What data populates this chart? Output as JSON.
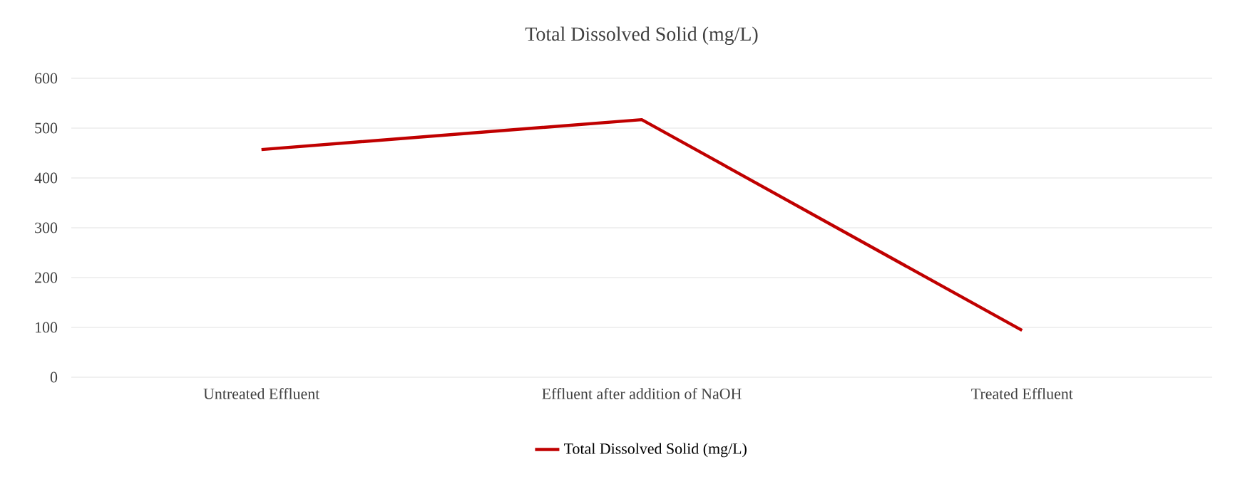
{
  "chart_data": {
    "type": "line",
    "title": "Total Dissolved Solid (mg/L)",
    "categories": [
      "Untreated Effluent",
      "Effluent after addition of  NaOH",
      "Treated Effluent"
    ],
    "series": [
      {
        "name": "Total Dissolved Solid (mg/L)",
        "color": "#c00000",
        "values": [
          457,
          517,
          94
        ]
      }
    ],
    "ylim": [
      0,
      600
    ],
    "yticks": [
      0,
      100,
      200,
      300,
      400,
      500,
      600
    ],
    "grid": "y",
    "legend": "bottom",
    "marker": "none",
    "line_style": "solid"
  }
}
